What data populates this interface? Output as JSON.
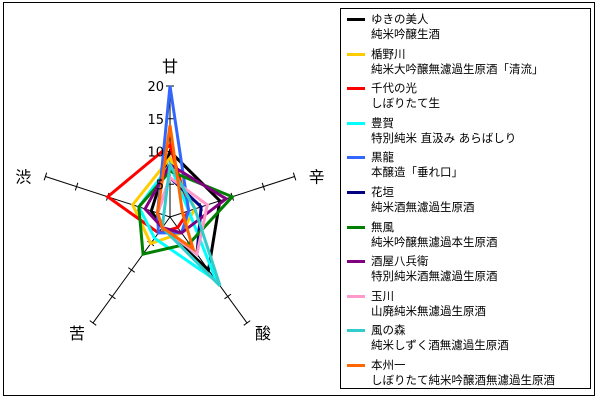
{
  "chart_data": {
    "type": "radar",
    "axes": [
      "甘",
      "辛",
      "酸",
      "苦",
      "渋"
    ],
    "scale": {
      "min": 0,
      "max": 20,
      "ticks": [
        5,
        10,
        15,
        20
      ]
    },
    "series": [
      {
        "name": "ゆきの美人",
        "subtitle": "純米吟醸生酒",
        "color": "#000000",
        "values": [
          10,
          8,
          10,
          2,
          3
        ]
      },
      {
        "name": "楯野川",
        "subtitle": "純米大吟醸無濾過生原酒「清流」",
        "color": "#ffcc00",
        "values": [
          9,
          4,
          3,
          5,
          6
        ]
      },
      {
        "name": "千代の光",
        "subtitle": "しぼりたて生",
        "color": "#ff0000",
        "values": [
          11,
          3,
          2,
          3,
          10
        ]
      },
      {
        "name": "豊賀",
        "subtitle": "特別純米 直汲み あらばしり",
        "color": "#00ffff",
        "values": [
          8,
          3,
          12,
          4,
          5
        ]
      },
      {
        "name": "黒龍",
        "subtitle": "本醸造「垂れ口」",
        "color": "#3366ff",
        "values": [
          20,
          3,
          3,
          3,
          2
        ]
      },
      {
        "name": "花垣",
        "subtitle": "純米酒無濾過生原酒",
        "color": "#000080",
        "values": [
          6,
          5,
          7,
          2,
          2
        ]
      },
      {
        "name": "無風",
        "subtitle": "純米吟醸無濾過本生原酒",
        "color": "#008000",
        "values": [
          7,
          10,
          5,
          7,
          5
        ]
      },
      {
        "name": "酒屋八兵衛",
        "subtitle": "特別純米酒無濾過生原酒",
        "color": "#800080",
        "values": [
          8,
          9,
          3,
          2,
          4
        ]
      },
      {
        "name": "玉川",
        "subtitle": "山廃純米無濾過生原酒",
        "color": "#ff99cc",
        "values": [
          6,
          6,
          7,
          2,
          2
        ]
      },
      {
        "name": "風の森",
        "subtitle": "純米しずく酒無濾過生原酒",
        "color": "#33cccc",
        "values": [
          8,
          4,
          13,
          2,
          1
        ]
      },
      {
        "name": "本州一",
        "subtitle": "しぼりたて純米吟醸酒無濾過生原酒",
        "color": "#ff6600",
        "values": [
          14,
          2,
          6,
          2,
          2
        ]
      }
    ]
  }
}
